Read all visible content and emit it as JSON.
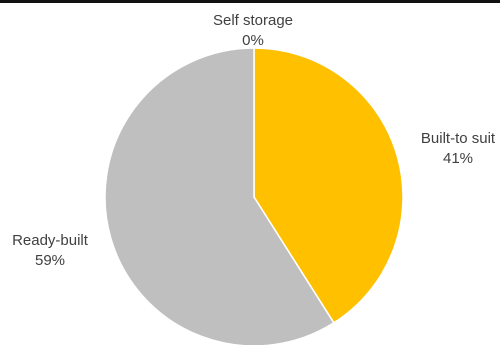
{
  "chart_data": {
    "type": "pie",
    "title": "",
    "slices": [
      {
        "label": "Self storage",
        "value_label": "0%",
        "value": 0,
        "color": "#000000"
      },
      {
        "label": "Built-to suit",
        "value_label": "41%",
        "value": 41,
        "color": "#FFC000"
      },
      {
        "label": "Ready-built",
        "value_label": "59%",
        "value": 59,
        "color": "#BFBFBF"
      }
    ],
    "legend": "none",
    "data_labels": "outside"
  }
}
